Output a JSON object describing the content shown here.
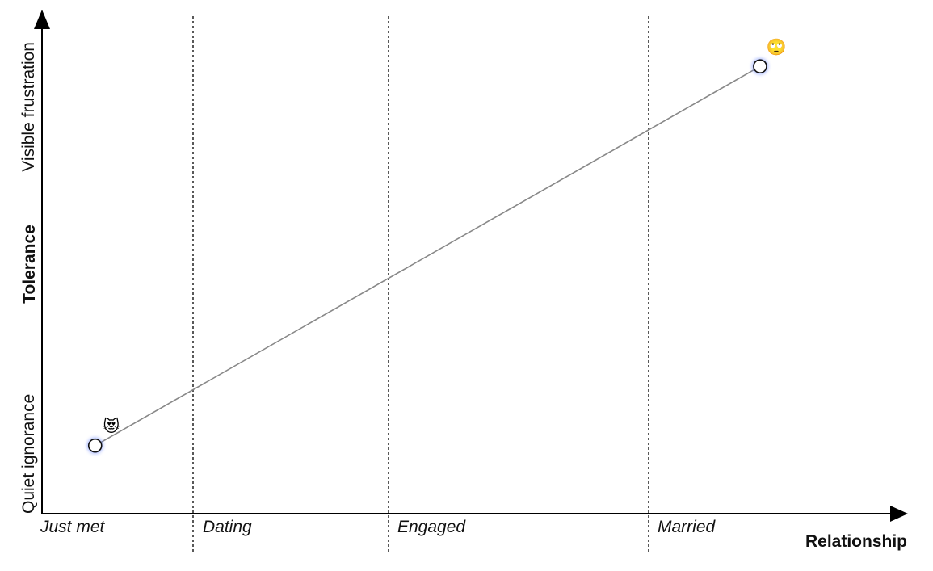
{
  "chart_data": {
    "type": "line",
    "x_axis_title": "Relationship",
    "y_axis_title": "Tolerance",
    "x_categories": [
      "Just met",
      "Dating",
      "Engaged",
      "Married"
    ],
    "y_levels": {
      "low": "Quiet ignorance",
      "high": "Visible frustration"
    },
    "xlim": [
      0,
      4
    ],
    "ylim": [
      0,
      1
    ],
    "grid": "dotted vertical separators between phases",
    "series": [
      {
        "points": [
          {
            "x": 0.25,
            "y": 0.14,
            "marker": "heart-eyes-cat-emoji"
          },
          {
            "x": 3.38,
            "y": 0.92,
            "marker": "eye-roll-emoji"
          }
        ]
      }
    ],
    "colors": {
      "line": "#888888",
      "axis": "#000000",
      "point_fill": "#ffffff",
      "point_glow": "#5b7cff"
    }
  }
}
